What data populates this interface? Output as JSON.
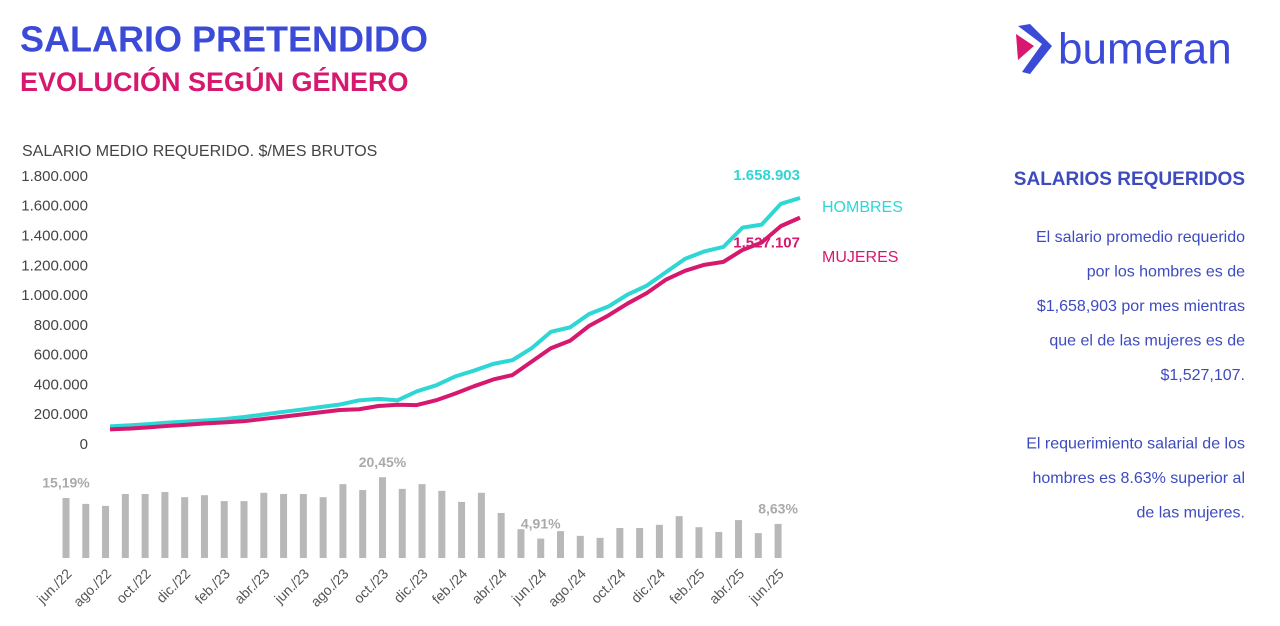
{
  "header": {
    "title": "SALARIO PRETENDIDO",
    "subtitle": "EVOLUCIÓN SEGÚN GÉNERO",
    "logo": "bumeran"
  },
  "side": {
    "title": "SALARIOS REQUERIDOS",
    "paragraphs": [
      [
        "El salario promedio requerido",
        "por los hombres es de",
        "$1,658,903 por mes mientras",
        "que el de las mujeres es de",
        "$1,527,107."
      ],
      [
        "El requerimiento salarial de los",
        "hombres es 8.63% superior al",
        "de las mujeres."
      ]
    ]
  },
  "chart_data": [
    {
      "type": "line",
      "title": "SALARIO MEDIO REQUERIDO. $/MES BRUTOS",
      "ylim": [
        0,
        1800000
      ],
      "yticks": [
        0,
        {
          "value": 200000,
          "label": "200.000"
        },
        {
          "value": 400000,
          "label": "400.000"
        },
        {
          "value": 600000,
          "label": "600.000"
        },
        {
          "value": 800000,
          "label": "800.000"
        },
        {
          "value": 1000000,
          "label": "1.000.000"
        },
        {
          "value": 1200000,
          "label": "1.200.000"
        },
        {
          "value": 1400000,
          "label": "1.400.000"
        },
        {
          "value": 1600000,
          "label": "1.600.000"
        },
        {
          "value": 1800000,
          "label": "1.800.000"
        }
      ],
      "series": [
        {
          "name": "HOMBRES",
          "color": "#2fd6d6",
          "values": [
            125000,
            132000,
            140000,
            150000,
            158000,
            165000,
            175000,
            188000,
            205000,
            222000,
            238000,
            255000,
            272000,
            300000,
            310000,
            300000,
            360000,
            400000,
            460000,
            500000,
            545000,
            570000,
            650000,
            760000,
            790000,
            880000,
            930000,
            1010000,
            1070000,
            1160000,
            1250000,
            1300000,
            1330000,
            1460000,
            1480000,
            1620000,
            1658903
          ],
          "value_labels": [
            null,
            null,
            null,
            null,
            null,
            null,
            null,
            null,
            null,
            null,
            null,
            null,
            null,
            null,
            null,
            null,
            null,
            null,
            null,
            null,
            null,
            null,
            null,
            null,
            null,
            null,
            null,
            null,
            null,
            null,
            null,
            null,
            null,
            null,
            null,
            null,
            "1.658.903"
          ]
        },
        {
          "name": "MUJERES",
          "color": "#d6186e",
          "values": [
            105000,
            110000,
            118000,
            128000,
            136000,
            145000,
            152000,
            160000,
            175000,
            190000,
            205000,
            220000,
            235000,
            240000,
            262000,
            270000,
            268000,
            300000,
            345000,
            395000,
            440000,
            470000,
            560000,
            650000,
            700000,
            800000,
            870000,
            950000,
            1020000,
            1110000,
            1170000,
            1210000,
            1230000,
            1310000,
            1360000,
            1470000,
            1527107
          ],
          "value_labels": [
            null,
            null,
            null,
            null,
            null,
            null,
            null,
            null,
            null,
            null,
            null,
            null,
            null,
            null,
            null,
            null,
            null,
            null,
            null,
            null,
            null,
            null,
            null,
            null,
            null,
            null,
            null,
            null,
            null,
            null,
            null,
            null,
            null,
            null,
            null,
            null,
            "1.527.107"
          ]
        }
      ]
    },
    {
      "type": "bar",
      "color": "#b8b8b8",
      "categories": [
        "jun./22",
        null,
        "ago./22",
        null,
        "oct./22",
        null,
        "dic./22",
        null,
        "feb./23",
        null,
        "abr./23",
        null,
        "jun./23",
        null,
        "ago./23",
        null,
        "oct./23",
        null,
        "dic./23",
        null,
        "feb./24",
        null,
        "abr./24",
        null,
        "jun./24",
        null,
        "ago./24",
        null,
        "oct./24",
        null,
        "dic./24",
        null,
        "feb./25",
        null,
        "abr./25",
        null,
        "jun./25"
      ],
      "values": [
        15.19,
        13.7,
        13.2,
        16.2,
        16.2,
        16.7,
        15.4,
        15.9,
        14.4,
        14.4,
        16.5,
        16.2,
        16.2,
        15.4,
        18.7,
        17.2,
        20.45,
        17.5,
        18.7,
        17.0,
        14.2,
        16.5,
        11.4,
        7.3,
        4.91,
        6.8,
        5.6,
        5.1,
        7.6,
        7.6,
        8.4,
        10.6,
        7.8,
        6.6,
        9.6,
        6.3,
        8.63
      ],
      "value_labels": [
        "15,19%",
        null,
        null,
        null,
        null,
        null,
        null,
        null,
        null,
        null,
        null,
        null,
        null,
        null,
        null,
        null,
        "20,45%",
        null,
        null,
        null,
        null,
        null,
        null,
        null,
        "4,91%",
        null,
        null,
        null,
        null,
        null,
        null,
        null,
        null,
        null,
        null,
        null,
        "8,63%"
      ]
    }
  ]
}
